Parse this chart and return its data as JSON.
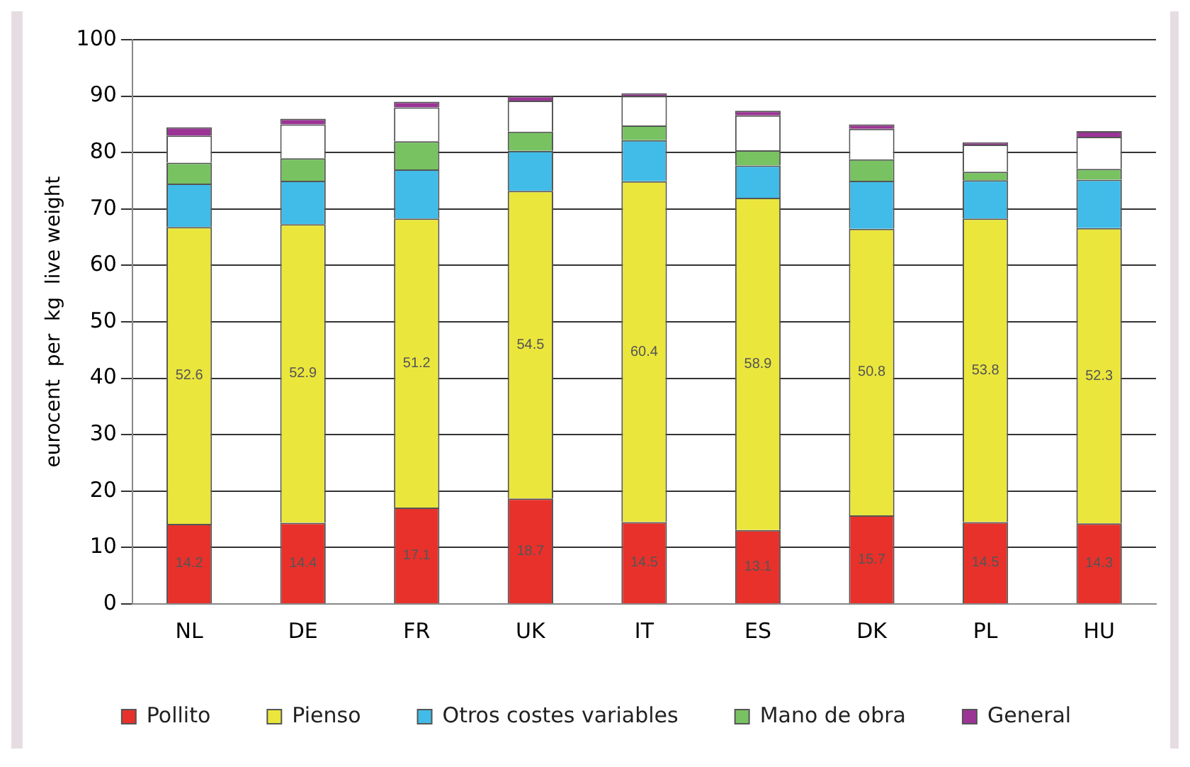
{
  "chart_data": {
    "type": "bar",
    "stacked": true,
    "ylabel": "eurocent  per  kg  live weight",
    "categories": [
      "NL",
      "DE",
      "FR",
      "UK",
      "IT",
      "ES",
      "DK",
      "PL",
      "HU"
    ],
    "series": [
      {
        "name": "Pollito",
        "color": "#e8312b",
        "values": [
          14.2,
          14.4,
          17.1,
          18.7,
          14.5,
          13.1,
          15.7,
          14.5,
          14.3
        ],
        "value_labels": [
          "14.2",
          "14.4",
          "17.1",
          "18.7",
          "14.5",
          "13.1",
          "15.7",
          "14.5",
          "14.3"
        ]
      },
      {
        "name": "Pienso",
        "color": "#ebe63c",
        "values": [
          52.6,
          52.9,
          51.2,
          54.5,
          60.4,
          58.9,
          50.8,
          53.8,
          52.3
        ],
        "value_labels": [
          "52.6",
          "52.9",
          "51.2",
          "54.5",
          "60.4",
          "58.9",
          "50.8",
          "53.8",
          "52.3"
        ]
      },
      {
        "name": "Otros costes variables",
        "color": "#41bce8",
        "values": [
          7.7,
          7.7,
          8.7,
          7.1,
          7.3,
          5.7,
          8.5,
          6.8,
          8.6
        ]
      },
      {
        "name": "Mano de obra",
        "color": "#78c262",
        "values": [
          3.7,
          4,
          5,
          3.4,
          2.6,
          2.7,
          3.8,
          1.5,
          1.9
        ]
      },
      {
        "color": "#ffffff",
        "values": [
          4.8,
          6,
          6,
          5.5,
          5.2,
          6.2,
          5.4,
          4.8,
          5.7
        ]
      },
      {
        "name": "General",
        "color": "#9b3495",
        "values": [
          1.5,
          1,
          1,
          0.8,
          0.5,
          0.8,
          0.8,
          0.4,
          1
        ]
      }
    ],
    "ylim": [
      0,
      100
    ],
    "yticks": [
      0,
      10,
      20,
      30,
      40,
      50,
      60,
      70,
      80,
      90,
      100
    ],
    "grid": "y",
    "legend": "bottom"
  }
}
